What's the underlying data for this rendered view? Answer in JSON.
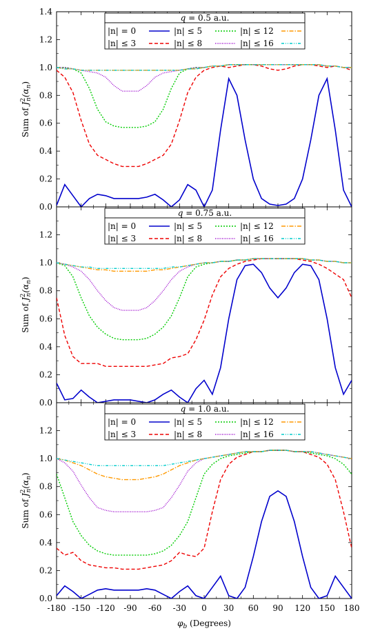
{
  "chart_data": [
    {
      "type": "line",
      "title": "q = 0.5 a.u.",
      "xlabel": "",
      "ylabel": "Sum of J_n^2(α_n)",
      "xlim": [
        -180,
        180
      ],
      "ylim": [
        0,
        1.4
      ],
      "yticks": [
        "0.0",
        "0.2",
        "0.4",
        "0.6",
        "0.8",
        "1.0",
        "1.2",
        "1.4"
      ],
      "grid": false,
      "legend_position": "top-center",
      "x": [
        -180,
        -170,
        -160,
        -150,
        -140,
        -130,
        -120,
        -110,
        -100,
        -90,
        -80,
        -70,
        -60,
        -50,
        -40,
        -30,
        -20,
        -10,
        0,
        10,
        20,
        30,
        40,
        50,
        60,
        70,
        80,
        90,
        100,
        110,
        120,
        130,
        140,
        150,
        160,
        170,
        180
      ],
      "series": [
        {
          "name": "|n| = 0",
          "color": "#0000cc",
          "dash": "",
          "values": [
            0.01,
            0.16,
            0.08,
            0.0,
            0.06,
            0.09,
            0.08,
            0.06,
            0.06,
            0.06,
            0.06,
            0.07,
            0.09,
            0.05,
            0.0,
            0.05,
            0.16,
            0.12,
            0.0,
            0.12,
            0.55,
            0.92,
            0.8,
            0.48,
            0.2,
            0.06,
            0.02,
            0.01,
            0.02,
            0.06,
            0.2,
            0.48,
            0.8,
            0.92,
            0.55,
            0.12,
            0.0
          ]
        },
        {
          "name": "|n| ≤ 3",
          "color": "#ee0000",
          "dash": "5,3",
          "values": [
            0.98,
            0.93,
            0.82,
            0.62,
            0.45,
            0.37,
            0.34,
            0.31,
            0.29,
            0.29,
            0.29,
            0.31,
            0.34,
            0.37,
            0.45,
            0.62,
            0.82,
            0.93,
            0.98,
            1.0,
            1.01,
            1.0,
            1.01,
            1.02,
            1.02,
            1.01,
            0.99,
            0.98,
            0.99,
            1.01,
            1.02,
            1.02,
            1.01,
            1.0,
            1.01,
            1.0,
            0.98
          ]
        },
        {
          "name": "|n| ≤ 5",
          "color": "#00cc00",
          "dash": "2,2",
          "values": [
            1.0,
            1.0,
            0.99,
            0.96,
            0.85,
            0.7,
            0.61,
            0.58,
            0.57,
            0.57,
            0.57,
            0.58,
            0.61,
            0.7,
            0.85,
            0.96,
            0.99,
            1.0,
            1.0,
            1.01,
            1.01,
            1.02,
            1.02,
            1.02,
            1.02,
            1.02,
            1.02,
            1.02,
            1.02,
            1.02,
            1.02,
            1.02,
            1.02,
            1.01,
            1.01,
            1.0,
            1.0
          ]
        },
        {
          "name": "|n| ≤ 8",
          "color": "#9900cc",
          "dash": "1,1.5",
          "values": [
            1.0,
            1.0,
            0.99,
            0.98,
            0.97,
            0.96,
            0.93,
            0.87,
            0.83,
            0.83,
            0.83,
            0.87,
            0.93,
            0.96,
            0.97,
            0.98,
            0.99,
            1.0,
            1.0,
            1.01,
            1.01,
            1.02,
            1.02,
            1.02,
            1.02,
            1.02,
            1.02,
            1.02,
            1.02,
            1.02,
            1.02,
            1.02,
            1.02,
            1.01,
            1.01,
            1.0,
            1.0
          ]
        },
        {
          "name": "|n| ≤ 12",
          "color": "#ff9900",
          "dash": "6,2,1.5,2",
          "values": [
            1.0,
            0.99,
            0.99,
            0.98,
            0.98,
            0.98,
            0.98,
            0.98,
            0.98,
            0.98,
            0.98,
            0.98,
            0.98,
            0.98,
            0.98,
            0.98,
            0.99,
            0.99,
            1.0,
            1.01,
            1.01,
            1.02,
            1.02,
            1.02,
            1.02,
            1.02,
            1.02,
            1.02,
            1.02,
            1.02,
            1.02,
            1.02,
            1.02,
            1.01,
            1.01,
            1.0,
            1.0
          ]
        },
        {
          "name": "|n| ≤ 16",
          "color": "#00cccc",
          "dash": "4,2,1,2,1,2",
          "values": [
            1.0,
            0.99,
            0.99,
            0.98,
            0.98,
            0.98,
            0.98,
            0.98,
            0.98,
            0.98,
            0.98,
            0.98,
            0.98,
            0.98,
            0.98,
            0.98,
            0.99,
            0.99,
            1.0,
            1.01,
            1.01,
            1.02,
            1.02,
            1.02,
            1.02,
            1.02,
            1.02,
            1.02,
            1.02,
            1.02,
            1.02,
            1.02,
            1.02,
            1.01,
            1.01,
            1.0,
            1.0
          ]
        }
      ]
    },
    {
      "type": "line",
      "title": "q = 0.75 a.u.",
      "xlabel": "",
      "ylabel": "Sum of J_n^2(α_n)",
      "xlim": [
        -180,
        180
      ],
      "ylim": [
        0,
        1.4
      ],
      "yticks": [
        "0.0",
        "0.2",
        "0.4",
        "0.6",
        "0.8",
        "1.0",
        "1.2",
        ""
      ],
      "grid": false,
      "legend_position": "top-center",
      "x": [
        -180,
        -170,
        -160,
        -150,
        -140,
        -130,
        -120,
        -110,
        -100,
        -90,
        -80,
        -70,
        -60,
        -50,
        -40,
        -30,
        -20,
        -10,
        0,
        10,
        20,
        30,
        40,
        50,
        60,
        70,
        80,
        90,
        100,
        110,
        120,
        130,
        140,
        150,
        160,
        170,
        180
      ],
      "series": [
        {
          "name": "|n| = 0",
          "color": "#0000cc",
          "dash": "",
          "values": [
            0.14,
            0.02,
            0.03,
            0.09,
            0.04,
            0.0,
            0.01,
            0.02,
            0.02,
            0.02,
            0.01,
            0.0,
            0.02,
            0.06,
            0.09,
            0.04,
            0.0,
            0.1,
            0.16,
            0.06,
            0.25,
            0.6,
            0.88,
            0.98,
            0.99,
            0.93,
            0.82,
            0.75,
            0.82,
            0.93,
            0.99,
            0.98,
            0.88,
            0.6,
            0.25,
            0.06,
            0.16
          ]
        },
        {
          "name": "|n| ≤ 3",
          "color": "#ee0000",
          "dash": "5,3",
          "values": [
            0.75,
            0.48,
            0.33,
            0.28,
            0.28,
            0.28,
            0.26,
            0.26,
            0.26,
            0.26,
            0.26,
            0.26,
            0.27,
            0.28,
            0.32,
            0.33,
            0.35,
            0.45,
            0.59,
            0.77,
            0.9,
            0.96,
            0.99,
            1.01,
            1.02,
            1.03,
            1.03,
            1.03,
            1.03,
            1.03,
            1.02,
            1.01,
            0.99,
            0.96,
            0.92,
            0.88,
            0.75
          ]
        },
        {
          "name": "|n| ≤ 5",
          "color": "#00cc00",
          "dash": "2,2",
          "values": [
            1.0,
            0.98,
            0.9,
            0.75,
            0.62,
            0.54,
            0.49,
            0.46,
            0.45,
            0.45,
            0.45,
            0.46,
            0.49,
            0.54,
            0.62,
            0.75,
            0.9,
            0.97,
            0.99,
            1.0,
            1.01,
            1.01,
            1.02,
            1.02,
            1.03,
            1.03,
            1.03,
            1.03,
            1.03,
            1.03,
            1.03,
            1.02,
            1.02,
            1.01,
            1.01,
            1.0,
            1.0
          ]
        },
        {
          "name": "|n| ≤ 8",
          "color": "#9900cc",
          "dash": "1,1.5",
          "values": [
            1.0,
            0.99,
            0.97,
            0.94,
            0.88,
            0.8,
            0.73,
            0.68,
            0.66,
            0.66,
            0.66,
            0.68,
            0.73,
            0.8,
            0.88,
            0.94,
            0.97,
            0.99,
            1.0,
            1.0,
            1.01,
            1.01,
            1.02,
            1.02,
            1.03,
            1.03,
            1.03,
            1.03,
            1.03,
            1.03,
            1.03,
            1.02,
            1.02,
            1.01,
            1.01,
            1.0,
            1.0
          ]
        },
        {
          "name": "|n| ≤ 12",
          "color": "#ff9900",
          "dash": "6,2,1.5,2",
          "values": [
            1.0,
            0.99,
            0.98,
            0.97,
            0.96,
            0.95,
            0.95,
            0.94,
            0.94,
            0.94,
            0.94,
            0.94,
            0.95,
            0.95,
            0.96,
            0.97,
            0.98,
            0.99,
            1.0,
            1.0,
            1.01,
            1.01,
            1.02,
            1.02,
            1.03,
            1.03,
            1.03,
            1.03,
            1.03,
            1.03,
            1.03,
            1.02,
            1.02,
            1.01,
            1.01,
            1.0,
            1.0
          ]
        },
        {
          "name": "|n| ≤ 16",
          "color": "#00cccc",
          "dash": "4,2,1,2,1,2",
          "values": [
            1.0,
            0.99,
            0.98,
            0.97,
            0.97,
            0.96,
            0.96,
            0.96,
            0.96,
            0.96,
            0.96,
            0.96,
            0.96,
            0.96,
            0.97,
            0.97,
            0.98,
            0.99,
            1.0,
            1.0,
            1.01,
            1.01,
            1.02,
            1.02,
            1.03,
            1.03,
            1.03,
            1.03,
            1.03,
            1.03,
            1.03,
            1.02,
            1.02,
            1.01,
            1.01,
            1.0,
            1.0
          ]
        }
      ]
    },
    {
      "type": "line",
      "title": "q = 1.0 a.u.",
      "xlabel": "φ_b (Degrees)",
      "ylabel": "Sum of J_n^2(α_n)",
      "xlim": [
        -180,
        180
      ],
      "ylim": [
        0,
        1.4
      ],
      "xticks": [
        "-180",
        "-150",
        "-120",
        "-90",
        "-60",
        "-30",
        "0",
        "30",
        "60",
        "90",
        "120",
        "150",
        "180"
      ],
      "yticks": [
        "0.0",
        "0.2",
        "0.4",
        "0.6",
        "0.8",
        "1.0",
        "1.2",
        ""
      ],
      "grid": false,
      "legend_position": "top-center",
      "x": [
        -180,
        -170,
        -160,
        -150,
        -140,
        -130,
        -120,
        -110,
        -100,
        -90,
        -80,
        -70,
        -60,
        -50,
        -40,
        -30,
        -20,
        -10,
        0,
        10,
        20,
        30,
        40,
        50,
        60,
        70,
        80,
        90,
        100,
        110,
        120,
        130,
        140,
        150,
        160,
        170,
        180
      ],
      "series": [
        {
          "name": "|n| = 0",
          "color": "#0000cc",
          "dash": "",
          "values": [
            0.02,
            0.09,
            0.05,
            0.0,
            0.03,
            0.06,
            0.07,
            0.06,
            0.06,
            0.06,
            0.06,
            0.07,
            0.06,
            0.03,
            0.0,
            0.05,
            0.09,
            0.02,
            0.0,
            0.08,
            0.16,
            0.02,
            0.0,
            0.08,
            0.3,
            0.55,
            0.73,
            0.77,
            0.73,
            0.55,
            0.3,
            0.08,
            0.0,
            0.02,
            0.16,
            0.08,
            0.0
          ]
        },
        {
          "name": "|n| ≤ 3",
          "color": "#ee0000",
          "dash": "5,3",
          "values": [
            0.36,
            0.31,
            0.33,
            0.27,
            0.24,
            0.23,
            0.22,
            0.22,
            0.21,
            0.21,
            0.21,
            0.22,
            0.23,
            0.24,
            0.27,
            0.33,
            0.31,
            0.3,
            0.36,
            0.62,
            0.85,
            0.96,
            1.01,
            1.03,
            1.05,
            1.05,
            1.06,
            1.06,
            1.06,
            1.05,
            1.05,
            1.03,
            1.01,
            0.96,
            0.85,
            0.62,
            0.36
          ]
        },
        {
          "name": "|n| ≤ 5",
          "color": "#00cc00",
          "dash": "2,2",
          "values": [
            0.89,
            0.72,
            0.55,
            0.45,
            0.38,
            0.34,
            0.32,
            0.31,
            0.31,
            0.31,
            0.31,
            0.31,
            0.32,
            0.34,
            0.38,
            0.45,
            0.55,
            0.72,
            0.89,
            0.96,
            1.0,
            1.02,
            1.03,
            1.04,
            1.05,
            1.05,
            1.06,
            1.06,
            1.06,
            1.05,
            1.05,
            1.04,
            1.03,
            1.02,
            1.0,
            0.96,
            0.89
          ]
        },
        {
          "name": "|n| ≤ 8",
          "color": "#9900cc",
          "dash": "1,1.5",
          "values": [
            1.0,
            0.97,
            0.91,
            0.81,
            0.72,
            0.65,
            0.63,
            0.62,
            0.62,
            0.62,
            0.62,
            0.62,
            0.63,
            0.65,
            0.72,
            0.81,
            0.91,
            0.97,
            1.0,
            1.01,
            1.02,
            1.03,
            1.04,
            1.05,
            1.05,
            1.05,
            1.06,
            1.06,
            1.06,
            1.05,
            1.05,
            1.05,
            1.04,
            1.03,
            1.02,
            1.01,
            1.0
          ]
        },
        {
          "name": "|n| ≤ 12",
          "color": "#ff9900",
          "dash": "6,2,1.5,2",
          "values": [
            1.0,
            0.99,
            0.97,
            0.95,
            0.92,
            0.89,
            0.87,
            0.86,
            0.85,
            0.85,
            0.85,
            0.86,
            0.87,
            0.89,
            0.92,
            0.95,
            0.97,
            0.99,
            1.0,
            1.01,
            1.02,
            1.03,
            1.04,
            1.05,
            1.05,
            1.05,
            1.06,
            1.06,
            1.06,
            1.05,
            1.05,
            1.05,
            1.04,
            1.03,
            1.02,
            1.01,
            1.0
          ]
        },
        {
          "name": "|n| ≤ 16",
          "color": "#00cccc",
          "dash": "4,2,1,2,1,2",
          "values": [
            1.0,
            0.99,
            0.98,
            0.97,
            0.96,
            0.95,
            0.95,
            0.95,
            0.95,
            0.95,
            0.95,
            0.95,
            0.95,
            0.95,
            0.96,
            0.97,
            0.98,
            0.99,
            1.0,
            1.01,
            1.02,
            1.03,
            1.04,
            1.05,
            1.05,
            1.05,
            1.06,
            1.06,
            1.06,
            1.05,
            1.05,
            1.05,
            1.04,
            1.03,
            1.02,
            1.01,
            1.0
          ]
        }
      ]
    }
  ]
}
